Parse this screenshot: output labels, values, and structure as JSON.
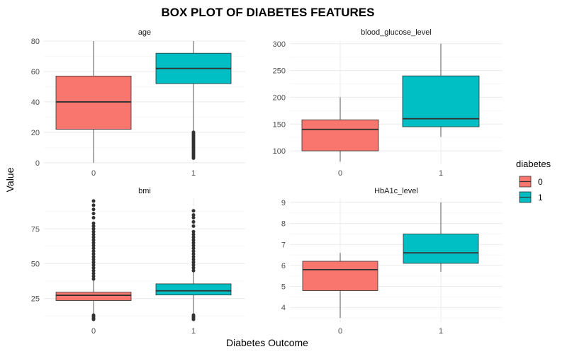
{
  "chart_data": {
    "type": "box",
    "title": "BOX PLOT OF DIABETES FEATURES",
    "xlabel": "Diabetes Outcome",
    "ylabel": "Value",
    "categories": [
      "0",
      "1"
    ],
    "grid": true,
    "legend": {
      "title": "diabetes",
      "position": "right",
      "entries": [
        {
          "label": "0",
          "color": "#F8766D"
        },
        {
          "label": "1",
          "color": "#00BFC4"
        }
      ]
    },
    "panels": [
      {
        "name": "age",
        "ylim": [
          -1,
          80
        ],
        "yticks": [
          0,
          20,
          40,
          60,
          80
        ],
        "boxes": [
          {
            "category": "0",
            "min": 0,
            "q1": 22,
            "median": 40,
            "q3": 57,
            "max": 80,
            "outliers": []
          },
          {
            "category": "1",
            "min": 21,
            "q1": 52,
            "median": 62,
            "q3": 72,
            "max": 80,
            "outliers": [
              20,
              19,
              18,
              17,
              16,
              15,
              14,
              13,
              12,
              11,
              10,
              9,
              8,
              7,
              6,
              5,
              4,
              3
            ]
          }
        ]
      },
      {
        "name": "blood_glucose_level",
        "ylim": [
          75,
          305
        ],
        "yticks": [
          100,
          150,
          200,
          250,
          300
        ],
        "boxes": [
          {
            "category": "0",
            "min": 80,
            "q1": 100,
            "median": 140,
            "q3": 158,
            "max": 200,
            "outliers": []
          },
          {
            "category": "1",
            "min": 126,
            "q1": 145,
            "median": 160,
            "q3": 240,
            "max": 300,
            "outliers": []
          }
        ]
      },
      {
        "name": "bmi",
        "ylim": [
          8,
          97
        ],
        "yticks": [
          25,
          50,
          75
        ],
        "boxes": [
          {
            "category": "0",
            "min": 14,
            "q1": 23.5,
            "median": 27.3,
            "q3": 29.5,
            "max": 38,
            "outliers": [
              10,
              11,
              12,
              13,
              39,
              41,
              43,
              45,
              47,
              49,
              51,
              53,
              55,
              57,
              59,
              61,
              63,
              65,
              67,
              69,
              71,
              73,
              75,
              77,
              79,
              83,
              86,
              89,
              92,
              95
            ]
          },
          {
            "category": "1",
            "min": 14,
            "q1": 27.5,
            "median": 30.5,
            "q3": 35.5,
            "max": 44,
            "outliers": [
              10,
              11,
              12,
              13,
              45,
              47,
              49,
              51,
              53,
              55,
              57,
              59,
              61,
              63,
              65,
              67,
              69,
              71,
              73,
              77,
              80,
              83,
              85,
              88
            ]
          }
        ]
      },
      {
        "name": "HbA1c_level",
        "ylim": [
          3.3,
          9.2
        ],
        "yticks": [
          4,
          5,
          6,
          7,
          8,
          9
        ],
        "boxes": [
          {
            "category": "0",
            "min": 3.5,
            "q1": 4.8,
            "median": 5.8,
            "q3": 6.2,
            "max": 6.6,
            "outliers": []
          },
          {
            "category": "1",
            "min": 5.7,
            "q1": 6.1,
            "median": 6.6,
            "q3": 7.5,
            "max": 9.0,
            "outliers": []
          }
        ]
      }
    ]
  }
}
